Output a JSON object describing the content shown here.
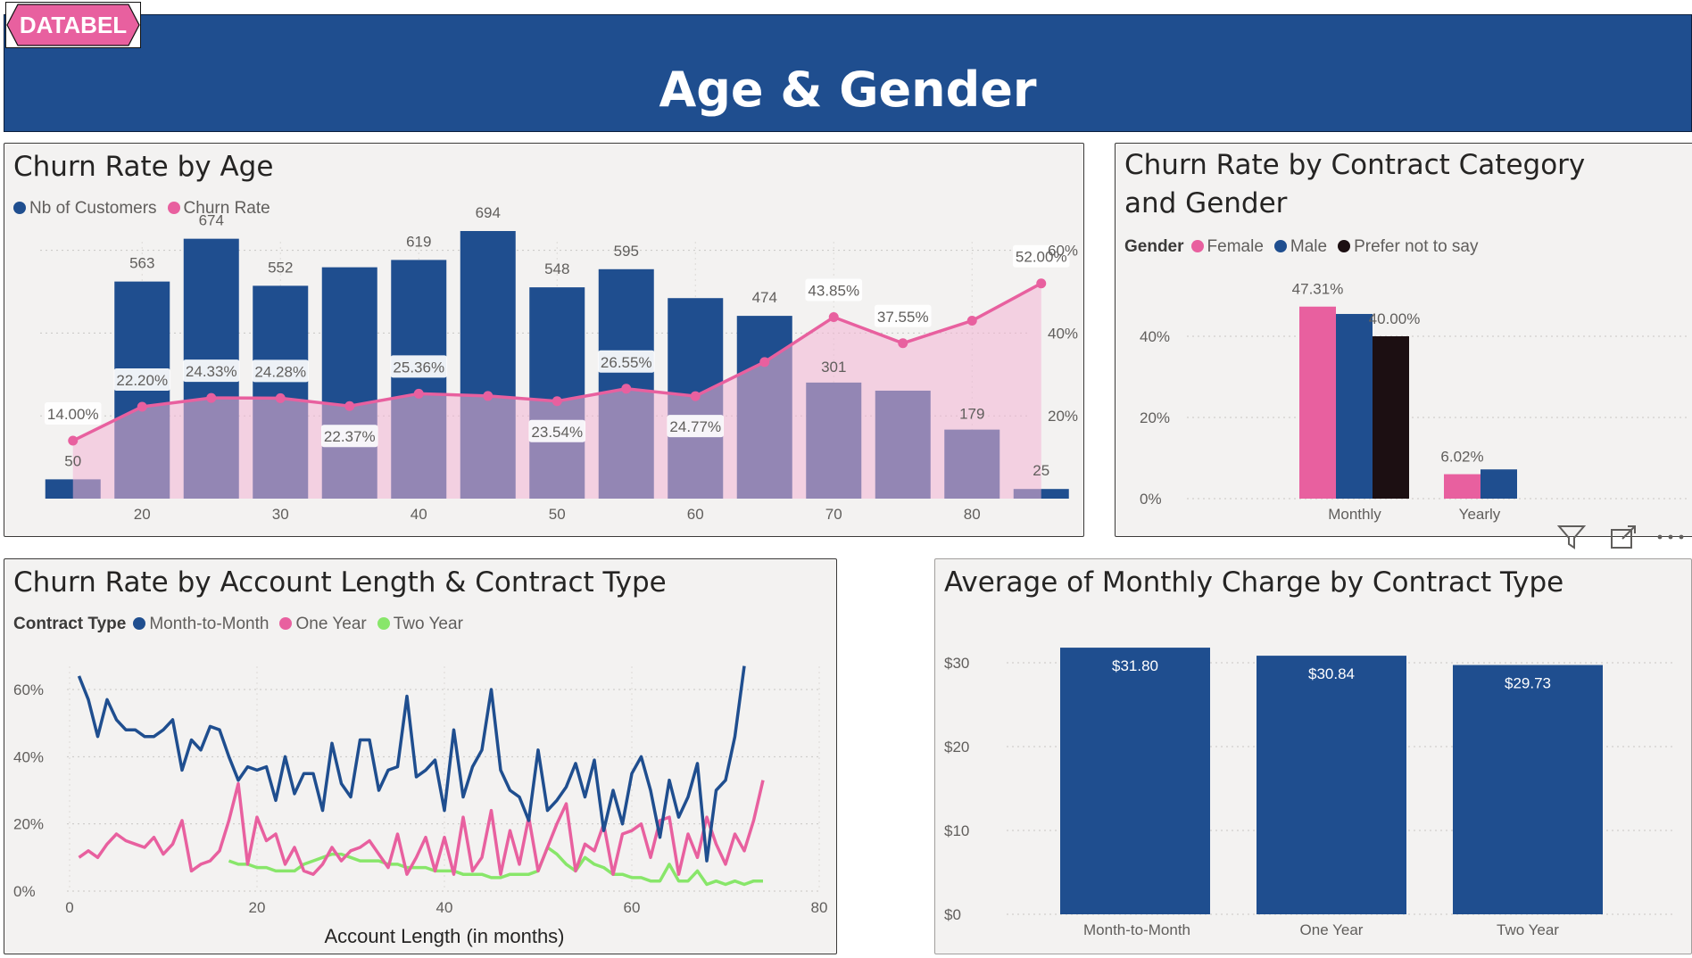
{
  "brand": {
    "logo_text": "DATABEL"
  },
  "header": {
    "title": "Age & Gender"
  },
  "colors": {
    "navy": "#1f4e8f",
    "pink": "#e8609f",
    "pink_fill": "#f3b4d3",
    "dark": "#1c0f12",
    "green": "#88e66a"
  },
  "panels": {
    "age": {
      "title": "Churn Rate by Age",
      "legend": [
        "Nb of Customers",
        "Churn Rate"
      ]
    },
    "contract_gender": {
      "title": "Churn Rate by Contract Category and Gender",
      "legend_label": "Gender",
      "legend": [
        "Female",
        "Male",
        "Prefer not to say"
      ]
    },
    "account_length": {
      "title": "Churn Rate by Account Length & Contract Type",
      "legend_label": "Contract Type",
      "legend": [
        "Month-to-Month",
        "One Year",
        "Two Year"
      ]
    },
    "monthly_charge": {
      "title": "Average of Monthly Charge by Contract Type"
    }
  },
  "toolbar": {
    "icons": [
      "filter-icon",
      "focus-mode-icon",
      "more-options-icon"
    ]
  },
  "chart_data": [
    {
      "id": "age",
      "type": "bar",
      "title": "Churn Rate by Age",
      "x_ticks": [
        20,
        30,
        40,
        50,
        60,
        70,
        80
      ],
      "y2_ticks": [
        "20%",
        "40%",
        "60%"
      ],
      "y2lim": [
        0,
        60
      ],
      "categories": [
        15,
        20,
        25,
        30,
        35,
        40,
        45,
        50,
        55,
        60,
        65,
        70,
        75,
        80,
        85
      ],
      "series": [
        {
          "name": "Nb of Customers",
          "kind": "bar",
          "values": [
            50,
            563,
            674,
            552,
            600,
            619,
            694,
            548,
            595,
            520,
            474,
            301,
            280,
            179,
            25
          ],
          "labels": [
            "50",
            "563",
            "674",
            "552",
            "",
            "619",
            "694",
            "548",
            "595",
            "",
            "474",
            "301",
            "",
            "179",
            "25"
          ]
        },
        {
          "name": "Churn Rate",
          "kind": "area-line",
          "values": [
            14.0,
            22.2,
            24.33,
            24.28,
            22.37,
            25.36,
            24.8,
            23.54,
            26.55,
            24.77,
            33.0,
            43.85,
            37.55,
            43.0,
            52.0
          ],
          "labels": [
            "14.00%",
            "22.20%",
            "24.33%",
            "24.28%",
            "22.37%",
            "25.36%",
            "",
            "23.54%",
            "26.55%",
            "24.77%",
            "",
            "43.85%",
            "37.55%",
            "",
            "52.00%"
          ]
        }
      ]
    },
    {
      "id": "contract_gender",
      "type": "bar",
      "title": "Churn Rate by Contract Category and Gender",
      "categories": [
        "Monthly",
        "Yearly"
      ],
      "y_ticks": [
        "0%",
        "20%",
        "40%"
      ],
      "ylim": [
        0,
        50
      ],
      "series": [
        {
          "name": "Female",
          "values": [
            47.31,
            6.02
          ],
          "labels": [
            "47.31%",
            "6.02%"
          ]
        },
        {
          "name": "Male",
          "values": [
            45.5,
            7.2
          ],
          "labels": [
            "",
            ""
          ]
        },
        {
          "name": "Prefer not to say",
          "values": [
            40.0,
            null
          ],
          "labels": [
            "40.00%",
            ""
          ]
        }
      ]
    },
    {
      "id": "account_length",
      "type": "line",
      "title": "Churn Rate by Account Length & Contract Type",
      "xlabel": "Account Length (in months)",
      "x_ticks": [
        0,
        20,
        40,
        60,
        80
      ],
      "y_ticks": [
        "0%",
        "20%",
        "40%",
        "60%"
      ],
      "xlim": [
        0,
        80
      ],
      "ylim": [
        0,
        65
      ],
      "series": [
        {
          "name": "Month-to-Month",
          "x": [
            1,
            2,
            3,
            4,
            5,
            6,
            7,
            8,
            9,
            10,
            11,
            12,
            13,
            14,
            15,
            16,
            17,
            18,
            19,
            20,
            21,
            22,
            23,
            24,
            25,
            26,
            27,
            28,
            29,
            30,
            31,
            32,
            33,
            34,
            35,
            36,
            37,
            38,
            39,
            40,
            41,
            42,
            43,
            44,
            45,
            46,
            47,
            48,
            49,
            50,
            51,
            52,
            53,
            54,
            55,
            56,
            57,
            58,
            59,
            60,
            61,
            62,
            63,
            64,
            65,
            66,
            67,
            68,
            69,
            70,
            71,
            72
          ],
          "y": [
            64,
            57,
            46,
            57,
            51,
            48,
            48,
            46,
            46,
            48,
            51,
            36,
            45,
            42,
            49,
            48,
            40,
            33,
            37,
            36,
            37,
            27,
            40,
            29,
            35,
            35,
            24,
            44,
            32,
            28,
            45,
            45,
            30,
            36,
            37,
            58,
            34,
            36,
            39,
            24,
            48,
            28,
            37,
            42,
            60,
            36,
            30,
            28,
            21,
            42,
            24,
            27,
            31,
            38,
            28,
            39,
            18,
            30,
            20,
            35,
            40,
            30,
            16,
            33,
            22,
            28,
            38,
            9,
            30,
            33,
            46,
            67
          ]
        },
        {
          "name": "One Year",
          "x": [
            1,
            2,
            3,
            4,
            5,
            6,
            7,
            8,
            9,
            10,
            11,
            12,
            13,
            14,
            15,
            16,
            17,
            18,
            19,
            20,
            21,
            22,
            23,
            24,
            25,
            26,
            27,
            28,
            29,
            30,
            31,
            32,
            33,
            34,
            35,
            36,
            37,
            38,
            39,
            40,
            41,
            42,
            43,
            44,
            45,
            46,
            47,
            48,
            49,
            50,
            51,
            52,
            53,
            54,
            55,
            56,
            57,
            58,
            59,
            60,
            61,
            62,
            63,
            64,
            65,
            66,
            67,
            68,
            69,
            70,
            71,
            72,
            73,
            74
          ],
          "y": [
            10,
            12,
            10,
            14,
            17,
            15,
            14,
            13,
            16,
            11,
            14,
            21,
            6,
            8,
            9,
            12,
            21,
            32,
            8,
            22,
            15,
            17,
            8,
            13,
            6,
            5,
            8,
            13,
            9,
            12,
            13,
            15,
            11,
            7,
            17,
            5,
            10,
            16,
            6,
            16,
            5,
            22,
            6,
            10,
            24,
            5,
            18,
            8,
            22,
            6,
            13,
            20,
            26,
            6,
            14,
            12,
            20,
            5,
            17,
            18,
            20,
            10,
            21,
            22,
            5,
            17,
            10,
            22,
            14,
            8,
            17,
            12,
            21,
            33
          ]
        },
        {
          "name": "Two Year",
          "x": [
            17,
            18,
            19,
            20,
            21,
            22,
            23,
            24,
            25,
            26,
            27,
            28,
            29,
            30,
            31,
            32,
            33,
            34,
            35,
            36,
            37,
            38,
            39,
            40,
            41,
            42,
            43,
            44,
            45,
            46,
            47,
            48,
            49,
            50,
            51,
            52,
            53,
            54,
            55,
            56,
            57,
            58,
            59,
            60,
            61,
            62,
            63,
            64,
            65,
            66,
            67,
            68,
            69,
            70,
            71,
            72,
            73,
            74
          ],
          "y": [
            9,
            8,
            8,
            7,
            7,
            6,
            6,
            6,
            8,
            9,
            10,
            11,
            11,
            10,
            9,
            9,
            9,
            8,
            8,
            7,
            7,
            7,
            6,
            6,
            6,
            5,
            5,
            5,
            4,
            4,
            5,
            5,
            5,
            6,
            13,
            11,
            8,
            6,
            10,
            8,
            7,
            5,
            5,
            4,
            4,
            3,
            3,
            8,
            3,
            3,
            6,
            2,
            3,
            2,
            3,
            2,
            3,
            3
          ]
        }
      ]
    },
    {
      "id": "monthly_charge",
      "type": "bar",
      "title": "Average of Monthly Charge by Contract Type",
      "categories": [
        "Month-to-Month",
        "One Year",
        "Two Year"
      ],
      "values": [
        31.8,
        30.84,
        29.73
      ],
      "labels": [
        "$31.80",
        "$30.84",
        "$29.73"
      ],
      "y_ticks": [
        "$0",
        "$10",
        "$20",
        "$30"
      ],
      "ylim": [
        0,
        32
      ]
    }
  ]
}
